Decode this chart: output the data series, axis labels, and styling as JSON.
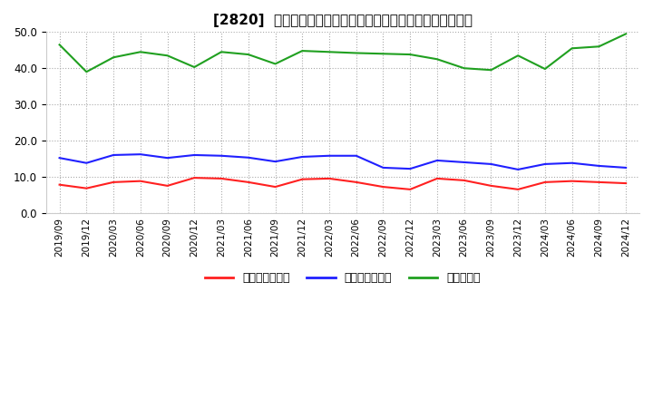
{
  "title": "[2820]  売上債権回転率、買入債務回転率、在庫回転率の推移",
  "ylim": [
    0,
    50.0
  ],
  "yticks": [
    0.0,
    10.0,
    20.0,
    30.0,
    40.0,
    50.0
  ],
  "background_color": "#ffffff",
  "grid_color": "#aaaaaa",
  "x_labels": [
    "2019/09",
    "2019/12",
    "2020/03",
    "2020/06",
    "2020/09",
    "2020/12",
    "2021/03",
    "2021/06",
    "2021/09",
    "2021/12",
    "2022/03",
    "2022/06",
    "2022/09",
    "2022/12",
    "2023/03",
    "2023/06",
    "2023/09",
    "2023/12",
    "2024/03",
    "2024/06",
    "2024/09",
    "2024/12"
  ],
  "series": [
    {
      "name": "売上債権回転率",
      "color": "#ff2020",
      "values": [
        7.8,
        6.8,
        8.5,
        8.8,
        7.5,
        9.7,
        9.5,
        8.5,
        7.2,
        9.3,
        9.5,
        8.5,
        7.2,
        6.5,
        9.5,
        9.0,
        7.5,
        6.5,
        8.5,
        8.8,
        8.5,
        8.2
      ]
    },
    {
      "name": "買入債務回転率",
      "color": "#2020ff",
      "values": [
        15.2,
        13.8,
        16.0,
        16.2,
        15.2,
        16.0,
        15.8,
        15.3,
        14.2,
        15.5,
        15.8,
        15.8,
        12.5,
        12.2,
        14.5,
        14.0,
        13.5,
        12.0,
        13.5,
        13.8,
        13.0,
        12.5
      ]
    },
    {
      "name": "在庫回転率",
      "color": "#20a020",
      "values": [
        46.5,
        39.0,
        43.0,
        44.5,
        43.5,
        40.3,
        44.5,
        43.8,
        41.2,
        44.8,
        44.5,
        44.2,
        44.0,
        43.8,
        42.5,
        40.0,
        39.5,
        43.5,
        39.8,
        45.5,
        46.0,
        49.5
      ]
    }
  ]
}
